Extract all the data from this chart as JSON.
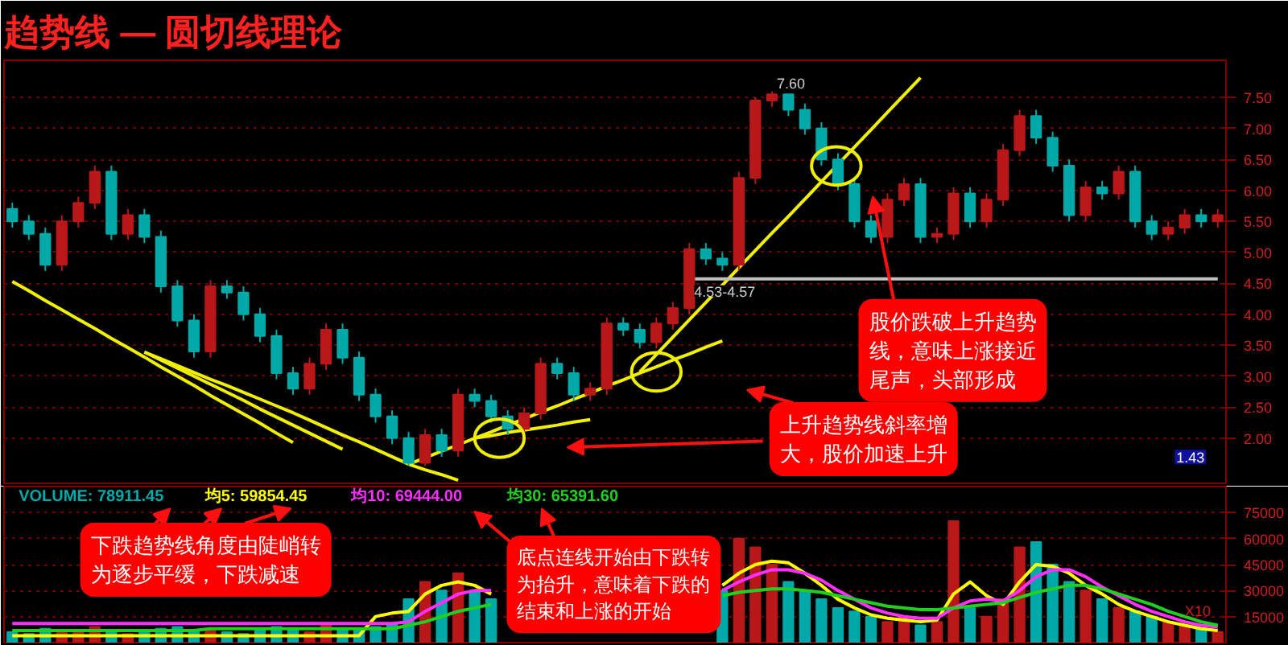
{
  "chart_data": [
    {
      "type": "candlestick",
      "title": "趋势线 — 圆切线理论",
      "categories": [
        null,
        null,
        null,
        null,
        null,
        null,
        null,
        null,
        null,
        null,
        null,
        null,
        null,
        null,
        null,
        null,
        null,
        null,
        null,
        null,
        null,
        null,
        null,
        null,
        null,
        null,
        null,
        null,
        null,
        null,
        null,
        null,
        null,
        null,
        null,
        null,
        null,
        null,
        null,
        null,
        null,
        null,
        null,
        null,
        null,
        null,
        null,
        null,
        null,
        null,
        null,
        null,
        null,
        null,
        null,
        null,
        null,
        null,
        null,
        null,
        null,
        null,
        null,
        null,
        null,
        null,
        null,
        null,
        null,
        null,
        null,
        null,
        null,
        null
      ],
      "ohlc": [
        [
          5.7,
          5.8,
          5.4,
          5.5
        ],
        [
          5.5,
          5.6,
          5.2,
          5.3
        ],
        [
          5.3,
          5.4,
          4.7,
          4.8
        ],
        [
          4.8,
          5.6,
          4.7,
          5.5
        ],
        [
          5.5,
          5.9,
          5.4,
          5.8
        ],
        [
          5.8,
          6.4,
          5.7,
          6.3
        ],
        [
          6.3,
          6.4,
          5.2,
          5.3
        ],
        [
          5.3,
          5.7,
          5.2,
          5.6
        ],
        [
          5.6,
          5.7,
          5.15,
          5.25
        ],
        [
          5.25,
          5.35,
          4.35,
          4.45
        ],
        [
          4.45,
          4.55,
          3.8,
          3.9
        ],
        [
          3.9,
          4.0,
          3.3,
          3.4
        ],
        [
          3.4,
          4.55,
          3.3,
          4.45
        ],
        [
          4.45,
          4.55,
          4.25,
          4.35
        ],
        [
          4.35,
          4.45,
          3.9,
          4.0
        ],
        [
          4.0,
          4.1,
          3.55,
          3.65
        ],
        [
          3.65,
          3.75,
          2.95,
          3.05
        ],
        [
          3.05,
          3.15,
          2.7,
          2.8
        ],
        [
          2.8,
          3.3,
          2.7,
          3.2
        ],
        [
          3.2,
          3.85,
          3.1,
          3.75
        ],
        [
          3.75,
          3.85,
          3.2,
          3.3
        ],
        [
          3.3,
          3.4,
          2.6,
          2.7
        ],
        [
          2.7,
          2.8,
          2.25,
          2.35
        ],
        [
          2.35,
          2.45,
          1.9,
          2.0
        ],
        [
          2.0,
          2.1,
          1.55,
          1.6
        ],
        [
          1.6,
          2.15,
          1.55,
          2.05
        ],
        [
          2.05,
          2.15,
          1.7,
          1.8
        ],
        [
          1.8,
          2.8,
          1.7,
          2.7
        ],
        [
          2.7,
          2.8,
          2.5,
          2.6
        ],
        [
          2.6,
          2.7,
          2.25,
          2.35
        ],
        [
          2.35,
          2.45,
          2.05,
          2.15
        ],
        [
          2.15,
          2.5,
          2.05,
          2.4
        ],
        [
          2.4,
          3.3,
          2.3,
          3.2
        ],
        [
          3.2,
          3.3,
          2.95,
          3.05
        ],
        [
          3.05,
          3.15,
          2.6,
          2.7
        ],
        [
          2.7,
          2.9,
          2.6,
          2.8
        ],
        [
          2.8,
          3.95,
          2.7,
          3.85
        ],
        [
          3.85,
          3.95,
          3.65,
          3.75
        ],
        [
          3.75,
          3.85,
          3.45,
          3.55
        ],
        [
          3.55,
          3.95,
          3.45,
          3.85
        ],
        [
          3.85,
          4.2,
          3.75,
          4.1
        ],
        [
          4.1,
          5.15,
          4.0,
          5.05
        ],
        [
          5.05,
          5.15,
          4.8,
          4.9
        ],
        [
          4.9,
          5.0,
          4.7,
          4.8
        ],
        [
          4.8,
          6.3,
          4.7,
          6.2
        ],
        [
          6.2,
          7.5,
          6.1,
          7.45
        ],
        [
          7.45,
          7.6,
          7.35,
          7.55
        ],
        [
          7.55,
          7.55,
          7.2,
          7.3
        ],
        [
          7.3,
          7.4,
          6.9,
          7.0
        ],
        [
          7.0,
          7.1,
          6.4,
          6.5
        ],
        [
          6.5,
          6.6,
          6.0,
          6.1
        ],
        [
          6.1,
          6.2,
          5.4,
          5.5
        ],
        [
          5.5,
          5.6,
          5.15,
          5.25
        ],
        [
          5.25,
          5.95,
          5.15,
          5.85
        ],
        [
          5.85,
          6.2,
          5.75,
          6.1
        ],
        [
          6.1,
          6.2,
          5.15,
          5.25
        ],
        [
          5.25,
          5.4,
          5.15,
          5.3
        ],
        [
          5.3,
          6.05,
          5.2,
          5.95
        ],
        [
          5.95,
          6.05,
          5.4,
          5.5
        ],
        [
          5.5,
          5.95,
          5.4,
          5.85
        ],
        [
          5.85,
          6.75,
          5.75,
          6.65
        ],
        [
          6.65,
          7.3,
          6.55,
          7.2
        ],
        [
          7.2,
          7.3,
          6.75,
          6.85
        ],
        [
          6.85,
          6.95,
          6.3,
          6.4
        ],
        [
          6.4,
          6.5,
          5.5,
          5.6
        ],
        [
          5.6,
          6.15,
          5.5,
          6.05
        ],
        [
          6.05,
          6.15,
          5.85,
          5.95
        ],
        [
          5.95,
          6.4,
          5.85,
          6.3
        ],
        [
          6.3,
          6.4,
          5.4,
          5.5
        ],
        [
          5.5,
          5.6,
          5.2,
          5.3
        ],
        [
          5.3,
          5.5,
          5.2,
          5.4
        ],
        [
          5.4,
          5.7,
          5.3,
          5.6
        ],
        [
          5.6,
          5.7,
          5.4,
          5.5
        ],
        [
          5.5,
          5.7,
          5.4,
          5.6
        ]
      ],
      "colors": [
        "#00a8a8",
        "#00a8a8",
        "#00a8a8",
        "#b81818",
        "#b81818",
        "#b81818",
        "#00a8a8",
        "#b81818",
        "#00a8a8",
        "#00a8a8",
        "#00a8a8",
        "#00a8a8",
        "#b81818",
        "#00a8a8",
        "#00a8a8",
        "#00a8a8",
        "#00a8a8",
        "#00a8a8",
        "#b81818",
        "#b81818",
        "#00a8a8",
        "#00a8a8",
        "#00a8a8",
        "#00a8a8",
        "#00a8a8",
        "#b81818",
        "#00a8a8",
        "#b81818",
        "#00a8a8",
        "#00a8a8",
        "#00a8a8",
        "#b81818",
        "#b81818",
        "#00a8a8",
        "#00a8a8",
        "#b81818",
        "#b81818",
        "#00a8a8",
        "#00a8a8",
        "#b81818",
        "#b81818",
        "#b81818",
        "#00a8a8",
        "#00a8a8",
        "#b81818",
        "#b81818",
        "#b81818",
        "#00a8a8",
        "#00a8a8",
        "#00a8a8",
        "#00a8a8",
        "#00a8a8",
        "#00a8a8",
        "#b81818",
        "#b81818",
        "#00a8a8",
        "#b81818",
        "#b81818",
        "#00a8a8",
        "#b81818",
        "#b81818",
        "#b81818",
        "#00a8a8",
        "#00a8a8",
        "#00a8a8",
        "#b81818",
        "#00a8a8",
        "#b81818",
        "#00a8a8",
        "#00a8a8",
        "#b81818",
        "#b81818",
        "#00a8a8",
        "#b81818"
      ],
      "ylim": [
        1.27,
        8.1
      ],
      "yticks": [
        {
          "value": 2,
          "label": "2.00"
        },
        {
          "value": 2.5,
          "label": "2.50"
        },
        {
          "value": 3,
          "label": "3.00"
        },
        {
          "value": 3.5,
          "label": "3.50"
        },
        {
          "value": 4,
          "label": "4.00"
        },
        {
          "value": 4.5,
          "label": "4.50"
        },
        {
          "value": 5,
          "label": "5.00"
        },
        {
          "value": 5.5,
          "label": "5.50"
        },
        {
          "value": 6,
          "label": "6.00"
        },
        {
          "value": 6.5,
          "label": "6.50"
        },
        {
          "value": 7,
          "label": "7.00"
        },
        {
          "value": 7.5,
          "label": "7.50"
        }
      ],
      "grid": "y",
      "tick_labels": "y",
      "series": [
        {
          "type": "line",
          "color": "#f0f000",
          "values": [
            4.53,
            4.38,
            4.22,
            4.07,
            3.92,
            3.77,
            3.61,
            3.46,
            3.31,
            3.15,
            3.0,
            2.85,
            2.69,
            2.54,
            2.39,
            2.24,
            2.08,
            1.93,
            null,
            null,
            null,
            null,
            null,
            null,
            null,
            null,
            null,
            null,
            null,
            null,
            null,
            null,
            null,
            null,
            null,
            null,
            null,
            null,
            null,
            null,
            null,
            null,
            null,
            null,
            null,
            null,
            null,
            null,
            null,
            null,
            null,
            null,
            null,
            null,
            null,
            null,
            null,
            null,
            null,
            null,
            null,
            null,
            null,
            null,
            null,
            null,
            null,
            null,
            null,
            null,
            null,
            null,
            null,
            null
          ]
        },
        {
          "type": "line",
          "color": "#f0f000",
          "values": [
            null,
            null,
            null,
            null,
            null,
            null,
            null,
            null,
            3.39,
            3.26,
            3.13,
            3.0,
            2.87,
            2.74,
            2.61,
            2.47,
            2.34,
            2.21,
            2.08,
            1.95,
            1.82,
            null,
            null,
            null,
            null,
            null,
            null,
            null,
            null,
            null,
            null,
            null,
            null,
            null,
            null,
            null,
            null,
            null,
            null,
            null,
            null,
            null,
            null,
            null,
            null,
            null,
            null,
            null,
            null,
            null,
            null,
            null,
            null,
            null,
            null,
            null,
            null,
            null,
            null,
            null,
            null,
            null,
            null,
            null,
            null,
            null,
            null,
            null,
            null,
            null,
            null,
            null,
            null,
            null
          ]
        },
        {
          "type": "line",
          "color": "#f0f000",
          "values": [
            null,
            null,
            null,
            null,
            null,
            null,
            null,
            null,
            3.39,
            3.28,
            3.17,
            3.06,
            2.95,
            2.85,
            2.74,
            2.63,
            2.52,
            2.41,
            2.29,
            2.17,
            2.05,
            1.94,
            1.82,
            1.7,
            1.58,
            1.49,
            1.41,
            1.32,
            null,
            null,
            null,
            null,
            null,
            null,
            null,
            null,
            null,
            null,
            null,
            null,
            null,
            null,
            null,
            null,
            null,
            null,
            null,
            null,
            null,
            null,
            null,
            null,
            null,
            null,
            null,
            null,
            null,
            null,
            null,
            null,
            null,
            null,
            null,
            null,
            null,
            null,
            null,
            null,
            null,
            null,
            null,
            null,
            null,
            null
          ]
        },
        {
          "type": "line",
          "color": "#f0f000",
          "values": [
            null,
            null,
            null,
            null,
            null,
            null,
            null,
            null,
            null,
            null,
            null,
            null,
            null,
            null,
            null,
            null,
            null,
            null,
            null,
            null,
            null,
            null,
            null,
            null,
            1.58,
            1.68,
            1.79,
            1.89,
            2.0,
            2.1,
            2.21,
            2.31,
            2.42,
            2.52,
            2.63,
            2.73,
            2.84,
            2.94,
            3.05,
            3.15,
            3.26,
            3.36,
            3.47,
            3.57,
            null,
            null,
            null,
            null,
            null,
            null,
            null,
            null,
            null,
            null,
            null,
            null,
            null,
            null,
            null,
            null,
            null,
            null,
            null,
            null,
            null,
            null,
            null,
            null,
            null,
            null,
            null,
            null,
            null,
            null
          ]
        },
        {
          "type": "line",
          "color": "#f0f000",
          "values": [
            null,
            null,
            null,
            null,
            null,
            null,
            null,
            null,
            null,
            null,
            null,
            null,
            null,
            null,
            null,
            null,
            null,
            null,
            null,
            null,
            null,
            null,
            null,
            null,
            null,
            null,
            null,
            null,
            2.0,
            2.04,
            2.09,
            2.13,
            2.17,
            2.21,
            2.26,
            2.3,
            null,
            null,
            null,
            null,
            null,
            null,
            null,
            null,
            null,
            null,
            null,
            null,
            null,
            null,
            null,
            null,
            null,
            null,
            null,
            null,
            null,
            null,
            null,
            null,
            null,
            null,
            null,
            null,
            null,
            null,
            null,
            null,
            null,
            null,
            null,
            null,
            null,
            null
          ]
        },
        {
          "type": "line",
          "color": "#f0f000",
          "values": [
            null,
            null,
            null,
            null,
            null,
            null,
            null,
            null,
            null,
            null,
            null,
            null,
            null,
            null,
            null,
            null,
            null,
            null,
            null,
            null,
            null,
            null,
            null,
            null,
            null,
            null,
            null,
            null,
            null,
            null,
            null,
            null,
            null,
            null,
            null,
            null,
            null,
            null,
            3.07,
            3.35,
            3.63,
            3.91,
            4.19,
            4.47,
            4.75,
            5.03,
            5.31,
            5.58,
            5.86,
            6.14,
            6.42,
            6.7,
            6.98,
            7.26,
            7.54,
            7.82,
            null,
            null,
            null,
            null,
            null,
            null,
            null,
            null,
            null,
            null,
            null,
            null,
            null,
            null,
            null,
            null,
            null,
            null
          ]
        },
        {
          "type": "line",
          "color": "#c0c0c0",
          "values": [
            null,
            null,
            null,
            null,
            null,
            null,
            null,
            null,
            null,
            null,
            null,
            null,
            null,
            null,
            null,
            null,
            null,
            null,
            null,
            null,
            null,
            null,
            null,
            null,
            null,
            null,
            null,
            null,
            null,
            null,
            null,
            null,
            null,
            null,
            null,
            null,
            null,
            null,
            null,
            null,
            null,
            4.57,
            4.57,
            4.57,
            4.57,
            4.57,
            4.57,
            4.57,
            4.57,
            4.57,
            4.57,
            4.57,
            4.57,
            4.57,
            4.57,
            4.57,
            4.57,
            4.57,
            4.57,
            4.57,
            4.57,
            4.57,
            4.57,
            4.57,
            4.57,
            4.57,
            4.57,
            4.57,
            4.57,
            4.57,
            4.57,
            4.57,
            4.57,
            4.57
          ]
        }
      ],
      "annotations": [
        {
          "text": "7.60",
          "y": 7.6
        },
        {
          "text": "4.53-4.57",
          "y": 4.57
        },
        "1.43",
        "上升趋势线斜率增大，股价加速上升",
        "股价跌破上升趋势线，意味上涨接近尾声，头部形成"
      ]
    },
    {
      "type": "bar",
      "ylim": [
        0,
        90000
      ],
      "yticks": [
        15000,
        30000,
        45000,
        60000,
        75000
      ],
      "grid": "y",
      "tick_labels": "y",
      "legend": "top left",
      "categories": [
        null,
        null,
        null,
        null,
        null,
        null,
        null,
        null,
        null,
        null,
        null,
        null,
        null,
        null,
        null,
        null,
        null,
        null,
        null,
        null,
        null,
        null,
        null,
        null,
        null,
        null,
        null,
        null,
        null,
        null,
        null,
        null,
        null,
        null,
        null,
        null,
        null,
        null,
        null,
        null,
        null,
        null,
        null,
        null,
        null,
        null,
        null,
        null,
        null,
        null,
        null,
        null,
        null,
        null,
        null,
        null,
        null,
        null,
        null,
        null,
        null,
        null,
        null,
        null,
        null,
        null,
        null,
        null,
        null,
        null,
        null,
        null,
        null,
        null
      ],
      "series": [
        {
          "type": "bar",
          "name": "VOLUME: 78911.45",
          "values": [
            6000,
            5000,
            8000,
            7000,
            6000,
            9000,
            7000,
            5000,
            6000,
            8000,
            9000,
            7000,
            8000,
            6000,
            5000,
            7000,
            9000,
            8000,
            6000,
            10000,
            8000,
            7000,
            9000,
            11000,
            25000,
            35000,
            30000,
            40000,
            30000,
            25000,
            null,
            null,
            null,
            null,
            null,
            null,
            null,
            null,
            null,
            null,
            null,
            null,
            null,
            30000,
            60000,
            55000,
            45000,
            35000,
            30000,
            25000,
            20000,
            18000,
            15000,
            12000,
            15000,
            10000,
            12000,
            70000,
            20000,
            15000,
            25000,
            55000,
            58000,
            45000,
            35000,
            30000,
            25000,
            20000,
            18000,
            15000,
            12000,
            10000,
            8000,
            6000
          ],
          "colors": [
            "#00a8a8",
            "#00a8a8",
            "#00a8a8",
            "#b81818",
            "#b81818",
            "#b81818",
            "#00a8a8",
            "#b81818",
            "#00a8a8",
            "#00a8a8",
            "#00a8a8",
            "#00a8a8",
            "#b81818",
            "#00a8a8",
            "#00a8a8",
            "#00a8a8",
            "#00a8a8",
            "#00a8a8",
            "#b81818",
            "#b81818",
            "#00a8a8",
            "#00a8a8",
            "#00a8a8",
            "#00a8a8",
            "#00a8a8",
            "#b81818",
            "#00a8a8",
            "#b81818",
            "#00a8a8",
            "#00a8a8",
            "#00a8a8",
            "#b81818",
            "#b81818",
            "#00a8a8",
            "#00a8a8",
            "#b81818",
            "#b81818",
            "#00a8a8",
            "#00a8a8",
            "#b81818",
            "#b81818",
            "#b81818",
            "#00a8a8",
            "#00a8a8",
            "#b81818",
            "#b81818",
            "#b81818",
            "#00a8a8",
            "#00a8a8",
            "#00a8a8",
            "#00a8a8",
            "#00a8a8",
            "#00a8a8",
            "#b81818",
            "#b81818",
            "#00a8a8",
            "#b81818",
            "#b81818",
            "#00a8a8",
            "#b81818",
            "#b81818",
            "#b81818",
            "#00a8a8",
            "#00a8a8",
            "#00a8a8",
            "#b81818",
            "#00a8a8",
            "#b81818",
            "#00a8a8",
            "#00a8a8",
            "#b81818",
            "#b81818",
            "#00a8a8",
            "#b81818"
          ]
        },
        {
          "type": "line",
          "name": "均5: 59854.45",
          "color": "#ffff00",
          "values": [
            4000,
            4000,
            4000,
            4000,
            4000,
            4000,
            4000,
            4000,
            4000,
            4000,
            4000,
            4000,
            4000,
            4000,
            4000,
            4000,
            4000,
            4000,
            4000,
            4000,
            4000,
            4000,
            15000,
            17000,
            18000,
            28000,
            33000,
            35000,
            33000,
            28000,
            null,
            null,
            null,
            null,
            null,
            null,
            null,
            null,
            null,
            null,
            null,
            null,
            null,
            33000,
            40000,
            45000,
            47000,
            46000,
            40000,
            33000,
            25000,
            20000,
            16000,
            14000,
            13000,
            12000,
            13000,
            28000,
            35000,
            27000,
            22000,
            35000,
            45000,
            44000,
            40000,
            33000,
            28000,
            22000,
            18000,
            15000,
            12000,
            10000,
            8000,
            7000
          ]
        },
        {
          "type": "line",
          "name": "均10: 69444.00",
          "color": "#ff30ff",
          "values": [
            11000,
            11000,
            11000,
            11000,
            11000,
            11000,
            11000,
            11000,
            11000,
            11000,
            11000,
            11000,
            11000,
            11000,
            11000,
            11000,
            11000,
            11000,
            11000,
            11000,
            11000,
            11000,
            11000,
            11000,
            12000,
            18000,
            23000,
            28000,
            30000,
            30000,
            null,
            null,
            null,
            null,
            null,
            null,
            null,
            null,
            null,
            null,
            null,
            null,
            null,
            30000,
            35000,
            39000,
            42000,
            42000,
            40000,
            36000,
            30000,
            25000,
            20000,
            17000,
            15000,
            14000,
            14000,
            20000,
            24000,
            25000,
            24000,
            30000,
            38000,
            42000,
            42000,
            38000,
            32000,
            27000,
            22000,
            18000,
            15000,
            12000,
            10000,
            9000
          ]
        },
        {
          "type": "line",
          "name": "均30: 65391.60",
          "color": "#20d020",
          "values": [
            7000,
            7000,
            7000,
            7000,
            7000,
            7000,
            7000,
            7000,
            7000,
            7000,
            7000,
            7000,
            8000,
            8000,
            8000,
            8000,
            8000,
            8000,
            8000,
            8000,
            8000,
            8000,
            8000,
            8000,
            10000,
            12000,
            15000,
            18000,
            20000,
            22000,
            null,
            null,
            null,
            null,
            null,
            null,
            null,
            null,
            null,
            null,
            null,
            null,
            null,
            27000,
            29000,
            30000,
            31000,
            31000,
            30000,
            29000,
            27000,
            25000,
            23000,
            21000,
            20000,
            19000,
            19000,
            20000,
            21000,
            22000,
            23000,
            26000,
            29000,
            31000,
            33000,
            33000,
            31000,
            28000,
            25000,
            22000,
            18000,
            15000,
            12000,
            10000
          ]
        }
      ],
      "annotations": [
        "下跌趋势线角度由陡峭转为逐步平缓，下跌减速",
        "底点连线开始由下跌转为抬升，意味着下跌的结束和上涨的开始",
        "X10"
      ]
    }
  ]
}
